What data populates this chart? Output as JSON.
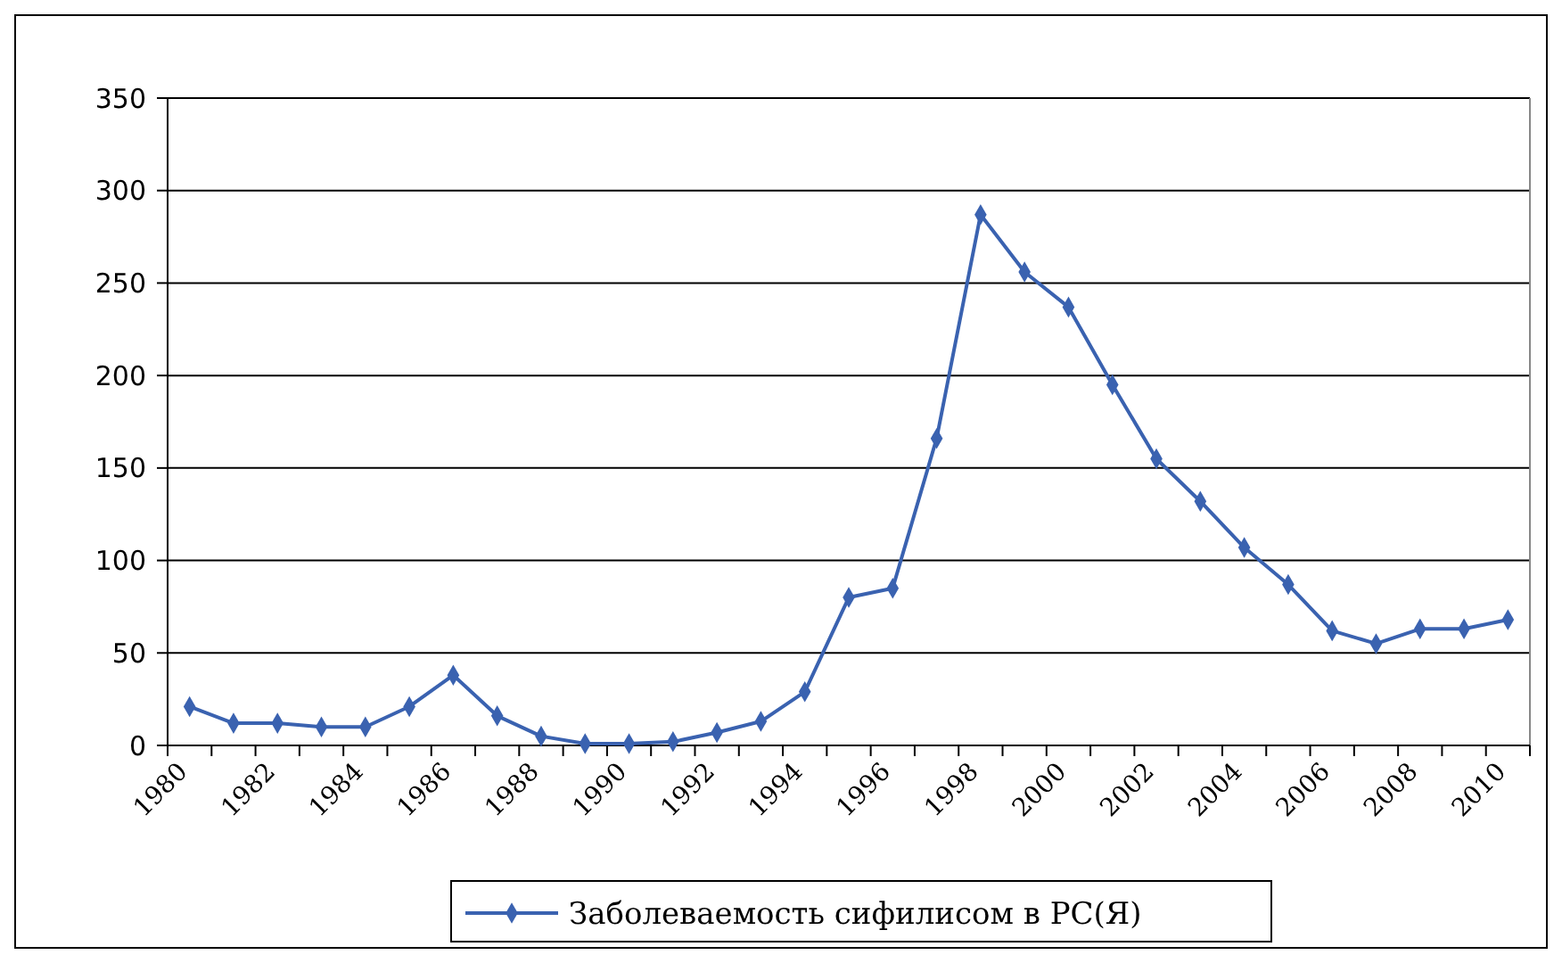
{
  "chart_data": {
    "type": "line",
    "categories": [
      "1980",
      null,
      "1982",
      null,
      "1984",
      null,
      "1986",
      null,
      "1988",
      null,
      "1990",
      null,
      "1992",
      null,
      "1994",
      null,
      "1996",
      null,
      "1998",
      null,
      "2000",
      null,
      "2002",
      null,
      "2004",
      null,
      "2006",
      null,
      "2008",
      null,
      "2010"
    ],
    "series": [
      {
        "name": "Заболеваемость сифилисом в РС(Я)",
        "color": "#3a62b0",
        "values": [
          21,
          12,
          12,
          10,
          10,
          21,
          38,
          16,
          5,
          1,
          1,
          2,
          7,
          13,
          29,
          80,
          85,
          166,
          287,
          256,
          237,
          195,
          155,
          132,
          107,
          87,
          62,
          55,
          63,
          63,
          68
        ]
      }
    ],
    "ylim": [
      0,
      350
    ],
    "yticks": [
      0,
      50,
      100,
      150,
      200,
      250,
      300,
      350
    ],
    "grid": "y",
    "legend": "bottom",
    "marker": "diamond",
    "line_style": "solid"
  }
}
